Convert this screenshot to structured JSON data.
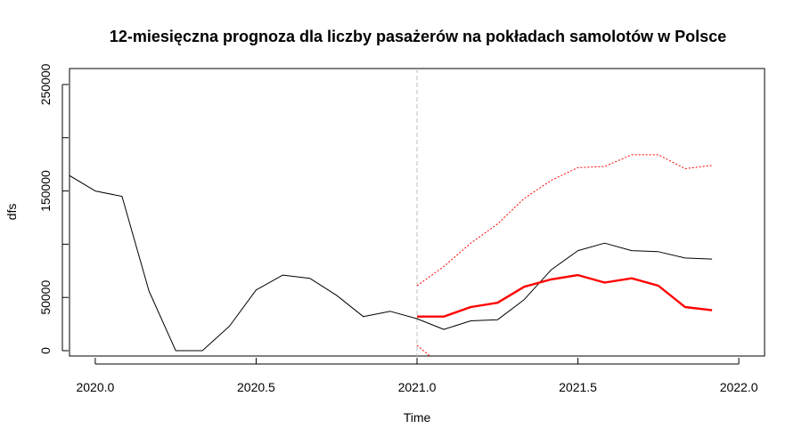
{
  "chart_data": {
    "type": "line",
    "title": "12-miesięczna prognoza dla liczby pasażerów na pokładach samolotów w Polsce",
    "xlabel": "Time",
    "ylabel": "dfs",
    "xlim": [
      2019.92,
      2022.08
    ],
    "ylim": [
      -5000,
      265000
    ],
    "x_ticks": [
      2020.0,
      2020.5,
      2021.0,
      2021.5,
      2022.0
    ],
    "x_tick_labels": [
      "2020.0",
      "2020.5",
      "2021.0",
      "2021.5",
      "2022.0"
    ],
    "y_ticks": [
      0,
      50000,
      100000,
      150000,
      200000,
      250000
    ],
    "y_tick_labels": [
      "0",
      "50000",
      "",
      "150000",
      "",
      "250000"
    ],
    "vline_x": 2021.0,
    "grid": false,
    "series": [
      {
        "color": "#000000",
        "style": "solid",
        "x": [
          2019.917,
          2020.0,
          2020.083,
          2020.167,
          2020.25,
          2020.333,
          2020.417,
          2020.5,
          2020.583,
          2020.667,
          2020.75,
          2020.833,
          2020.917,
          2021.0,
          2021.083,
          2021.167,
          2021.25,
          2021.333,
          2021.417,
          2021.5,
          2021.583,
          2021.667,
          2021.75,
          2021.833,
          2021.917
        ],
        "y": [
          165000,
          150000,
          145000,
          56000,
          0,
          0,
          23000,
          57000,
          71000,
          68000,
          52000,
          32000,
          37000,
          30000,
          20000,
          28000,
          29000,
          48000,
          76000,
          94000,
          101000,
          94000,
          93000,
          87000,
          86000
        ]
      },
      {
        "color": "#ff0000",
        "style": "solid-thick",
        "x": [
          2021.0,
          2021.083,
          2021.167,
          2021.25,
          2021.333,
          2021.417,
          2021.5,
          2021.583,
          2021.667,
          2021.75,
          2021.833,
          2021.917
        ],
        "y": [
          32000,
          32000,
          41000,
          45000,
          60000,
          67000,
          71000,
          64000,
          68000,
          61000,
          41000,
          38000
        ]
      },
      {
        "color": "#ff0000",
        "style": "dotted",
        "x": [
          2021.0,
          2021.083,
          2021.167,
          2021.25,
          2021.333,
          2021.417,
          2021.5,
          2021.583,
          2021.667,
          2021.75,
          2021.833,
          2021.917
        ],
        "y": [
          61000,
          79000,
          101000,
          119000,
          143000,
          160000,
          172000,
          173000,
          184000,
          184000,
          171000,
          174000
        ]
      },
      {
        "color": "#ff0000",
        "style": "dotted",
        "x": [
          2021.0,
          2021.06
        ],
        "y": [
          5000,
          -10000
        ]
      }
    ]
  }
}
